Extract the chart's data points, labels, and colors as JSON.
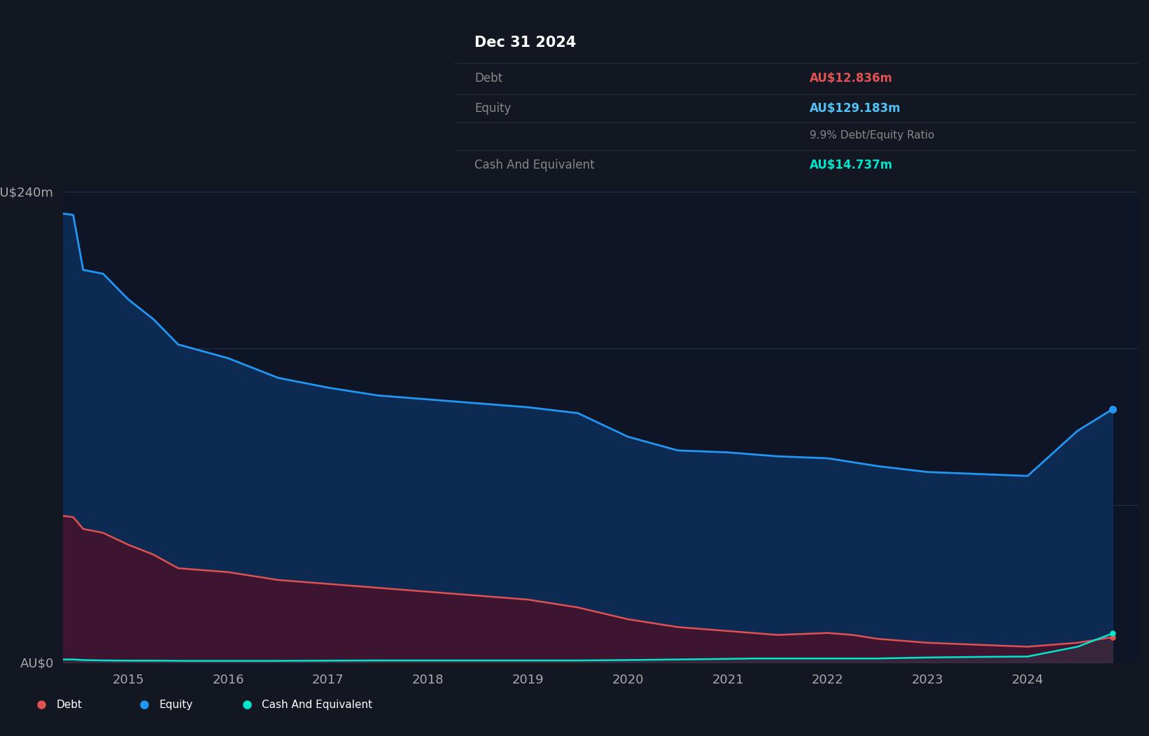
{
  "background_color": "#131722",
  "plot_bg_color": "#0d1526",
  "ylim": [
    0,
    240
  ],
  "grid_color": "#263350",
  "equity_color": "#2196f3",
  "equity_fill": "#0d2a52",
  "debt_color": "#e05252",
  "debt_fill": "#3d1530",
  "cash_color": "#00e5cc",
  "legend_bg": "#1a2035",
  "tooltip_bg": "#050a12",
  "tooltip_border": "#444444",
  "years": [
    2014.3,
    2014.45,
    2014.55,
    2014.75,
    2015.0,
    2015.25,
    2015.5,
    2016.0,
    2016.25,
    2016.5,
    2017.0,
    2017.5,
    2018.0,
    2018.5,
    2019.0,
    2019.5,
    2020.0,
    2020.5,
    2021.0,
    2021.25,
    2021.5,
    2022.0,
    2022.25,
    2022.5,
    2023.0,
    2023.5,
    2024.0,
    2024.5,
    2024.85
  ],
  "equity": [
    229,
    228,
    200,
    198,
    185,
    175,
    162,
    155,
    150,
    145,
    140,
    136,
    134,
    132,
    130,
    127,
    115,
    108,
    107,
    106,
    105,
    104,
    102,
    100,
    97,
    96,
    95,
    118,
    129
  ],
  "debt": [
    75,
    74,
    68,
    66,
    60,
    55,
    48,
    46,
    44,
    42,
    40,
    38,
    36,
    34,
    32,
    28,
    22,
    18,
    16,
    15,
    14,
    15,
    14,
    12,
    10,
    9,
    8,
    10,
    12.836
  ],
  "cash": [
    1.5,
    1.5,
    1.2,
    1.0,
    0.9,
    0.9,
    0.8,
    0.8,
    0.8,
    0.8,
    0.9,
    1.0,
    1.0,
    1.0,
    1.0,
    1.0,
    1.2,
    1.5,
    1.8,
    2.0,
    2.0,
    2.0,
    2.0,
    2.0,
    2.5,
    2.8,
    3.0,
    8.0,
    14.737
  ],
  "tooltip_date": "Dec 31 2024",
  "tooltip_debt_label": "Debt",
  "tooltip_debt_value": "AU$12.836m",
  "tooltip_equity_label": "Equity",
  "tooltip_equity_value": "AU$129.183m",
  "tooltip_ratio": "9.9% Debt/Equity Ratio",
  "tooltip_cash_label": "Cash And Equivalent",
  "tooltip_cash_value": "AU$14.737m",
  "debt_color_tooltip": "#e05252",
  "equity_color_tooltip": "#4fc3f7",
  "cash_color_tooltip": "#00e5cc",
  "xticks": [
    2015,
    2016,
    2017,
    2018,
    2019,
    2020,
    2021,
    2022,
    2023,
    2024
  ],
  "xtick_labels": [
    "2015",
    "2016",
    "2017",
    "2018",
    "2019",
    "2020",
    "2021",
    "2022",
    "2023",
    "2024"
  ]
}
